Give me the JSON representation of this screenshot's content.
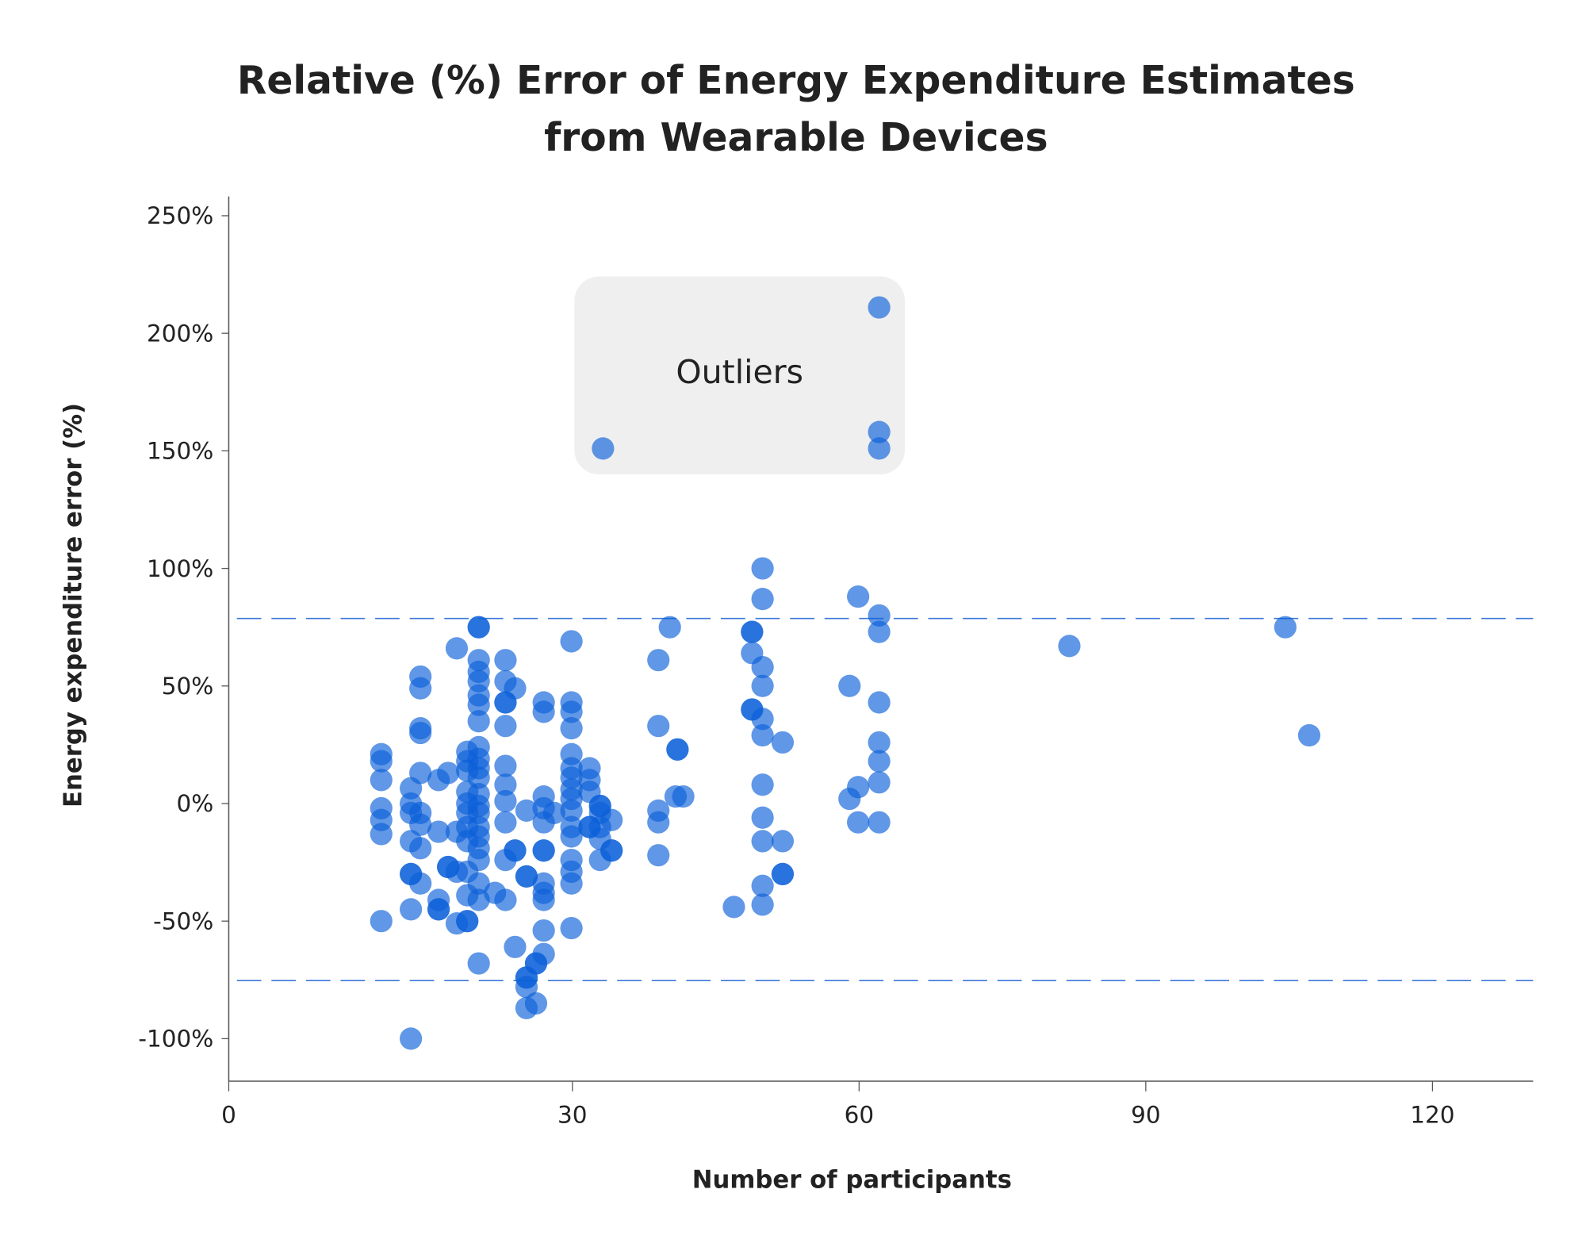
{
  "chart_data": {
    "type": "scatter",
    "title": [
      "Relative (%) Error of Energy Expenditure Estimates",
      "from Wearable Devices"
    ],
    "xlabel": "Number of participants",
    "ylabel": "Energy expenditure error (%)",
    "xlim": [
      0,
      130
    ],
    "ylim": [
      -117,
      258
    ],
    "x_ticks": [
      "0",
      "30",
      "60",
      "90",
      "120"
    ],
    "x_tick_values": [
      0,
      30,
      60,
      90,
      120
    ],
    "y_ticks": [
      "250%",
      "200%",
      "150%",
      "100%",
      "50%",
      "0%",
      "-50%",
      "-100%"
    ],
    "y_tick_values": [
      250,
      200,
      150,
      100,
      50,
      0,
      -50,
      -100
    ],
    "grid": false,
    "reference_lines": [
      78.7,
      -75.3
    ],
    "annotation": {
      "label": "Outliers",
      "x_range": [
        30,
        65
      ],
      "y_range": [
        140,
        222
      ]
    },
    "marker_color": "#0a5fd8",
    "reference_line_color": "#3a78d8",
    "points": [
      [
        10,
        21
      ],
      [
        10,
        18
      ],
      [
        10,
        10
      ],
      [
        10,
        -2
      ],
      [
        10,
        -7
      ],
      [
        10,
        -13
      ],
      [
        10,
        -50
      ],
      [
        13.1,
        6.5
      ],
      [
        13.1,
        0
      ],
      [
        13.1,
        -4
      ],
      [
        13.1,
        -16
      ],
      [
        13.1,
        -30
      ],
      [
        13.1,
        -30
      ],
      [
        13.1,
        -45
      ],
      [
        13.1,
        -100
      ],
      [
        14.1,
        54
      ],
      [
        14.1,
        49
      ],
      [
        14.1,
        32
      ],
      [
        14.1,
        30
      ],
      [
        14.1,
        13
      ],
      [
        14.1,
        -4
      ],
      [
        14.1,
        -9
      ],
      [
        14.1,
        -19
      ],
      [
        14.1,
        -34
      ],
      [
        16,
        10
      ],
      [
        16,
        -12
      ],
      [
        16,
        -41
      ],
      [
        16,
        -45
      ],
      [
        16,
        -45
      ],
      [
        17,
        13
      ],
      [
        17,
        -27
      ],
      [
        17,
        -27
      ],
      [
        17.9,
        66
      ],
      [
        17.9,
        -12
      ],
      [
        17.9,
        -29
      ],
      [
        17.9,
        -51
      ],
      [
        19,
        22
      ],
      [
        19,
        18
      ],
      [
        19,
        14
      ],
      [
        19,
        5
      ],
      [
        19,
        0
      ],
      [
        19,
        -4
      ],
      [
        19,
        -10
      ],
      [
        19,
        -16
      ],
      [
        19,
        -29
      ],
      [
        19,
        -39
      ],
      [
        19,
        -50
      ],
      [
        19,
        -50
      ],
      [
        20.2,
        75
      ],
      [
        20.2,
        75
      ],
      [
        20.2,
        61
      ],
      [
        20.2,
        56
      ],
      [
        20.2,
        52
      ],
      [
        20.2,
        46
      ],
      [
        20.2,
        42
      ],
      [
        20.2,
        35
      ],
      [
        20.2,
        24
      ],
      [
        20.2,
        19
      ],
      [
        20.2,
        15
      ],
      [
        20.2,
        11
      ],
      [
        20.2,
        4
      ],
      [
        20.2,
        -1
      ],
      [
        20.2,
        -4
      ],
      [
        20.2,
        -10
      ],
      [
        20.2,
        -14
      ],
      [
        20.2,
        -19
      ],
      [
        20.2,
        -24
      ],
      [
        20.2,
        -34
      ],
      [
        20.2,
        -41
      ],
      [
        20.2,
        -68
      ],
      [
        21.9,
        -38
      ],
      [
        23,
        61
      ],
      [
        23,
        52
      ],
      [
        23,
        43
      ],
      [
        23,
        43
      ],
      [
        23,
        33
      ],
      [
        23,
        16
      ],
      [
        23,
        8
      ],
      [
        23,
        1
      ],
      [
        23,
        -8
      ],
      [
        23,
        -24
      ],
      [
        23,
        -41
      ],
      [
        24,
        49
      ],
      [
        24,
        -20
      ],
      [
        24,
        -20
      ],
      [
        24,
        -61
      ],
      [
        25.2,
        -3
      ],
      [
        25.2,
        -31
      ],
      [
        25.2,
        -31
      ],
      [
        25.2,
        -74
      ],
      [
        25.2,
        -74
      ],
      [
        25.2,
        -78
      ],
      [
        25.2,
        -87
      ],
      [
        26.2,
        -68
      ],
      [
        26.2,
        -68
      ],
      [
        26.2,
        -85
      ],
      [
        27,
        43
      ],
      [
        27,
        39
      ],
      [
        27,
        3
      ],
      [
        27,
        -2
      ],
      [
        27,
        -8
      ],
      [
        27,
        -20
      ],
      [
        27,
        -20
      ],
      [
        27,
        -34
      ],
      [
        27,
        -38
      ],
      [
        27,
        -41
      ],
      [
        27,
        -54
      ],
      [
        27,
        -64
      ],
      [
        28.1,
        -4
      ],
      [
        29.9,
        69
      ],
      [
        29.9,
        43
      ],
      [
        29.9,
        39
      ],
      [
        29.9,
        32
      ],
      [
        29.9,
        21
      ],
      [
        29.9,
        15
      ],
      [
        29.9,
        11
      ],
      [
        29.9,
        6
      ],
      [
        29.9,
        2
      ],
      [
        29.9,
        -3
      ],
      [
        29.9,
        -10
      ],
      [
        29.9,
        -14
      ],
      [
        29.9,
        -24
      ],
      [
        29.9,
        -29
      ],
      [
        29.9,
        -34
      ],
      [
        29.9,
        -53
      ],
      [
        31.8,
        15
      ],
      [
        31.8,
        10
      ],
      [
        31.8,
        5
      ],
      [
        31.8,
        -10
      ],
      [
        31.8,
        -10
      ],
      [
        32.9,
        -1
      ],
      [
        32.9,
        -1
      ],
      [
        32.9,
        -4
      ],
      [
        32.9,
        -10
      ],
      [
        32.9,
        -15
      ],
      [
        32.9,
        -24
      ],
      [
        34.1,
        -7
      ],
      [
        34.1,
        -20
      ],
      [
        34.1,
        -20
      ],
      [
        39,
        61
      ],
      [
        39,
        33
      ],
      [
        39,
        -3
      ],
      [
        39,
        -8
      ],
      [
        39,
        -22
      ],
      [
        40.2,
        75
      ],
      [
        41,
        23
      ],
      [
        41,
        23
      ],
      [
        41.6,
        3
      ],
      [
        40.8,
        3
      ],
      [
        46.9,
        -44
      ],
      [
        48.8,
        73
      ],
      [
        48.8,
        73
      ],
      [
        48.8,
        64
      ],
      [
        48.8,
        40
      ],
      [
        48.8,
        40
      ],
      [
        49.9,
        100
      ],
      [
        49.9,
        87
      ],
      [
        49.9,
        58
      ],
      [
        49.9,
        50
      ],
      [
        49.9,
        36
      ],
      [
        49.9,
        29
      ],
      [
        49.9,
        8
      ],
      [
        49.9,
        -6
      ],
      [
        49.9,
        -16
      ],
      [
        49.9,
        -35
      ],
      [
        49.9,
        -43
      ],
      [
        52,
        26
      ],
      [
        52,
        -16
      ],
      [
        52,
        -30
      ],
      [
        52,
        -30
      ],
      [
        59,
        50
      ],
      [
        59,
        2
      ],
      [
        59.9,
        88
      ],
      [
        59.9,
        7
      ],
      [
        59.9,
        -8
      ],
      [
        62.1,
        211
      ],
      [
        62.1,
        158
      ],
      [
        62.1,
        151
      ],
      [
        62.1,
        80
      ],
      [
        62.1,
        73
      ],
      [
        62.1,
        43
      ],
      [
        62.1,
        26
      ],
      [
        62.1,
        18
      ],
      [
        62.1,
        9
      ],
      [
        62.1,
        -8
      ],
      [
        33.2,
        151
      ],
      [
        82,
        67
      ],
      [
        104.6,
        75
      ],
      [
        107.1,
        29
      ]
    ]
  }
}
